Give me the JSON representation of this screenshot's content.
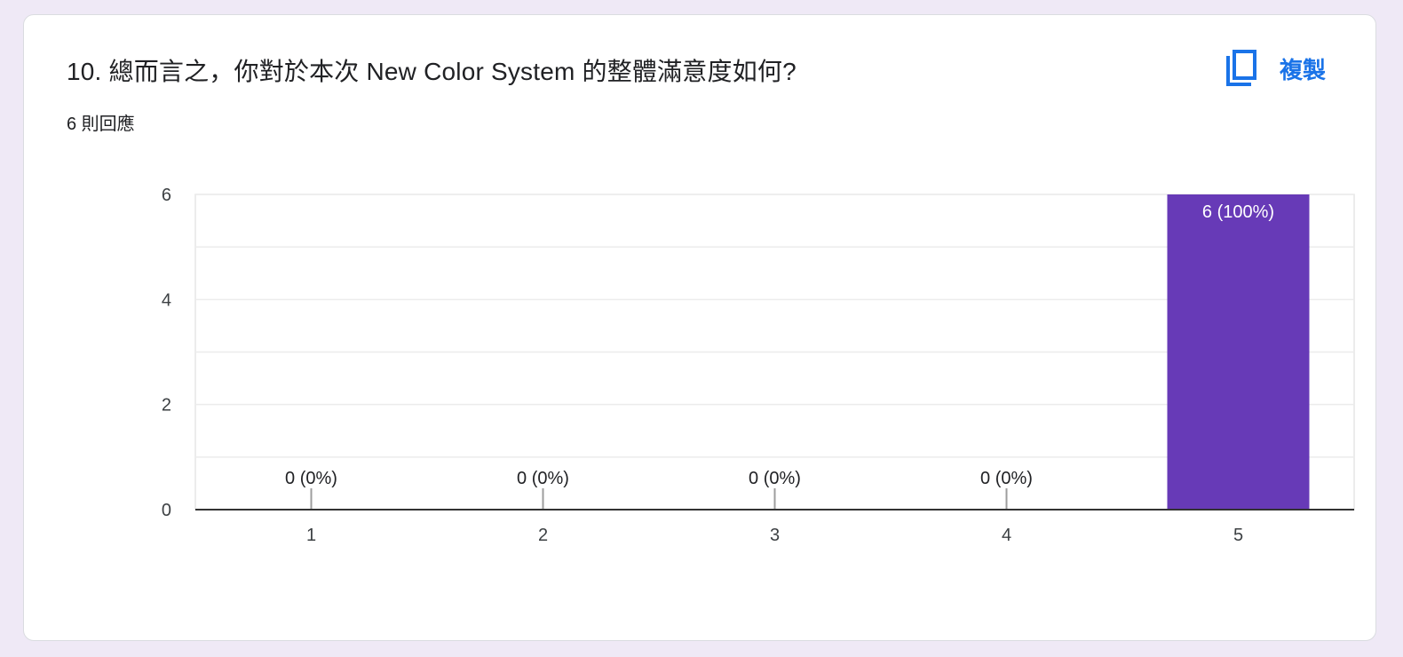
{
  "question": {
    "title": "10. 總而言之，你對於本次 New Color System 的整體滿意度如何?",
    "responses": "6 則回應",
    "copy_label": "複製",
    "copy_icon": "copy-icon"
  },
  "colors": {
    "bar": "#673ab7",
    "accent": "#1a73e8",
    "background": "#efe9f6"
  },
  "chart_data": {
    "type": "bar",
    "categories": [
      "1",
      "2",
      "3",
      "4",
      "5"
    ],
    "values": [
      0,
      0,
      0,
      0,
      6
    ],
    "data_labels": [
      "0 (0%)",
      "0 (0%)",
      "0 (0%)",
      "0 (0%)",
      "6 (100%)"
    ],
    "y_ticks": [
      "0",
      "2",
      "4",
      "6"
    ],
    "ylim": [
      0,
      6
    ],
    "grid": true,
    "legend": "none"
  }
}
